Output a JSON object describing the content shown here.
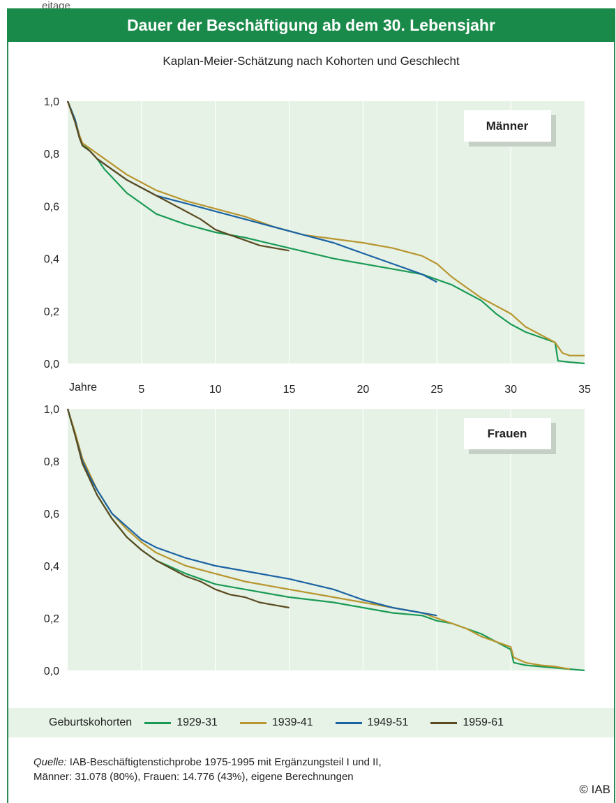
{
  "page": {
    "top_fragment": "eitage",
    "title": "Dauer der Beschäftigung ab dem 30. Lebensjahr",
    "subtitle": "Kaplan-Meier-Schätzung nach Kohorten und Geschlecht",
    "legend_title": "Geburtskohorten",
    "source_label": "Quelle:",
    "source_line1": "IAB-Beschäftigtenstichprobe 1975-1995 mit Ergänzungsteil I und II,",
    "source_line2": "Männer: 31.078 (80%), Frauen: 14.776 (43%), eigene Berechnungen",
    "copyright": "© IAB"
  },
  "colors": {
    "plot_bg": "#e6f2e6",
    "header_bg": "#1a8a4a",
    "1929-31": "#1a9a55",
    "1939-41": "#b8952e",
    "1949-51": "#1b63a3",
    "1959-61": "#5a4a20"
  },
  "chart_data": [
    {
      "type": "line",
      "panel_label": "Männer",
      "xlim": [
        0,
        35
      ],
      "ylim": [
        0,
        1
      ],
      "x_ticks": [
        "5",
        "10",
        "15",
        "20",
        "25",
        "30",
        "35"
      ],
      "x_axis_label": "Jahre",
      "y_ticks": [
        "0,0",
        "0,2",
        "0,4",
        "0,6",
        "0,8",
        "1,0"
      ],
      "grid": true,
      "series": [
        {
          "name": "1929-31",
          "x": [
            0,
            0.5,
            0.8,
            1,
            1.5,
            2,
            2.5,
            3,
            3.5,
            4,
            5,
            6,
            8,
            10,
            12,
            15,
            18,
            20,
            22,
            24,
            25,
            26,
            27,
            28,
            29,
            30,
            31,
            32,
            33,
            33.2,
            34,
            35
          ],
          "y": [
            1,
            0.93,
            0.86,
            0.84,
            0.81,
            0.78,
            0.74,
            0.71,
            0.68,
            0.65,
            0.61,
            0.57,
            0.53,
            0.5,
            0.48,
            0.44,
            0.4,
            0.38,
            0.36,
            0.34,
            0.32,
            0.3,
            0.27,
            0.24,
            0.19,
            0.15,
            0.12,
            0.1,
            0.08,
            0.01,
            0.005,
            0.0
          ]
        },
        {
          "name": "1939-41",
          "x": [
            0,
            0.5,
            0.8,
            1,
            1.5,
            2,
            3,
            4,
            5,
            6,
            8,
            10,
            12,
            14,
            16,
            18,
            20,
            22,
            24,
            25,
            26,
            27,
            28,
            29,
            30,
            31,
            32,
            33,
            33.5,
            34,
            35
          ],
          "y": [
            1,
            0.93,
            0.87,
            0.84,
            0.82,
            0.8,
            0.76,
            0.72,
            0.69,
            0.66,
            0.62,
            0.59,
            0.56,
            0.52,
            0.49,
            0.475,
            0.46,
            0.44,
            0.41,
            0.38,
            0.33,
            0.29,
            0.25,
            0.22,
            0.19,
            0.14,
            0.11,
            0.08,
            0.04,
            0.03,
            0.03
          ]
        },
        {
          "name": "1949-51",
          "x": [
            0,
            0.5,
            0.8,
            1,
            1.5,
            2,
            3,
            4,
            5,
            6,
            8,
            10,
            12,
            14,
            16,
            18,
            20,
            22,
            24,
            25
          ],
          "y": [
            1,
            0.93,
            0.86,
            0.83,
            0.81,
            0.78,
            0.74,
            0.7,
            0.67,
            0.64,
            0.61,
            0.58,
            0.55,
            0.52,
            0.49,
            0.46,
            0.42,
            0.38,
            0.34,
            0.31
          ]
        },
        {
          "name": "1959-61",
          "x": [
            0,
            0.5,
            0.8,
            1,
            1.5,
            2,
            3,
            4,
            5,
            6,
            7,
            8,
            9,
            10,
            11,
            12,
            13,
            14,
            15
          ],
          "y": [
            1,
            0.92,
            0.86,
            0.83,
            0.81,
            0.78,
            0.74,
            0.7,
            0.67,
            0.64,
            0.61,
            0.58,
            0.55,
            0.51,
            0.49,
            0.47,
            0.45,
            0.44,
            0.43
          ]
        }
      ]
    },
    {
      "type": "line",
      "panel_label": "Frauen",
      "xlim": [
        0,
        35
      ],
      "ylim": [
        0,
        1
      ],
      "x_ticks": [],
      "x_axis_label": "",
      "y_ticks": [
        "0,0",
        "0,2",
        "0,4",
        "0,6",
        "0,8",
        "1,0"
      ],
      "grid": true,
      "series": [
        {
          "name": "1929-31",
          "x": [
            0,
            0.5,
            1,
            1.5,
            2,
            3,
            4,
            5,
            6,
            8,
            10,
            12,
            15,
            18,
            20,
            22,
            24,
            25,
            26,
            27,
            28,
            29,
            30,
            30.2,
            31,
            32,
            33,
            34,
            35
          ],
          "y": [
            1,
            0.9,
            0.8,
            0.73,
            0.67,
            0.58,
            0.51,
            0.46,
            0.42,
            0.37,
            0.33,
            0.31,
            0.28,
            0.26,
            0.24,
            0.22,
            0.21,
            0.19,
            0.18,
            0.16,
            0.14,
            0.11,
            0.08,
            0.03,
            0.02,
            0.015,
            0.01,
            0.005,
            0.0
          ]
        },
        {
          "name": "1939-41",
          "x": [
            0,
            0.5,
            1,
            1.5,
            2,
            3,
            4,
            5,
            6,
            8,
            10,
            12,
            15,
            18,
            20,
            22,
            24,
            25,
            26,
            27,
            28,
            29,
            30,
            30.2,
            31,
            32,
            33,
            34
          ],
          "y": [
            1,
            0.91,
            0.81,
            0.75,
            0.69,
            0.6,
            0.54,
            0.49,
            0.45,
            0.4,
            0.37,
            0.34,
            0.31,
            0.28,
            0.26,
            0.24,
            0.22,
            0.2,
            0.18,
            0.16,
            0.13,
            0.11,
            0.09,
            0.05,
            0.03,
            0.02,
            0.015,
            0.005
          ]
        },
        {
          "name": "1949-51",
          "x": [
            0,
            0.5,
            1,
            1.5,
            2,
            3,
            4,
            5,
            6,
            8,
            10,
            12,
            15,
            18,
            20,
            22,
            24,
            25
          ],
          "y": [
            1,
            0.9,
            0.8,
            0.74,
            0.69,
            0.6,
            0.55,
            0.5,
            0.47,
            0.43,
            0.4,
            0.38,
            0.35,
            0.31,
            0.27,
            0.24,
            0.22,
            0.21
          ]
        },
        {
          "name": "1959-61",
          "x": [
            0,
            0.5,
            1,
            1.5,
            2,
            3,
            4,
            5,
            6,
            7,
            8,
            9,
            10,
            11,
            12,
            13,
            14,
            15
          ],
          "y": [
            1,
            0.9,
            0.79,
            0.73,
            0.67,
            0.58,
            0.51,
            0.46,
            0.42,
            0.39,
            0.36,
            0.34,
            0.31,
            0.29,
            0.28,
            0.26,
            0.25,
            0.24
          ]
        }
      ]
    }
  ]
}
